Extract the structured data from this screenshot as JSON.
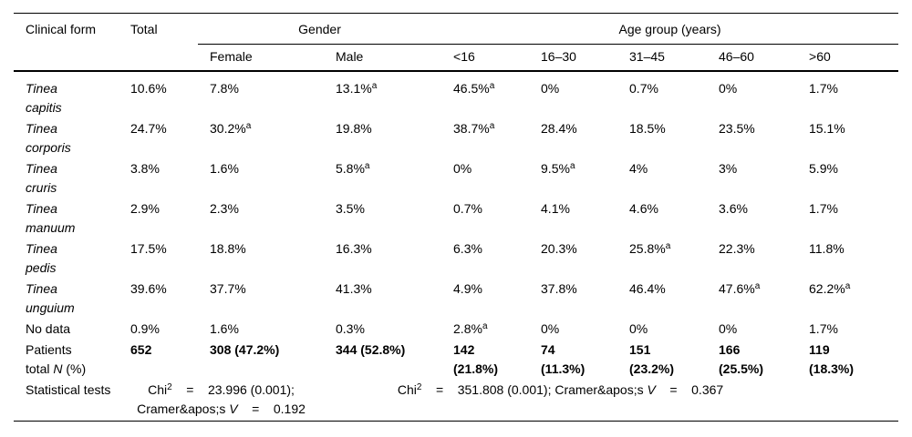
{
  "table": {
    "header": {
      "clinical_form": "Clinical form",
      "total": "Total",
      "gender": "Gender",
      "age_group": "Age group (years)",
      "sub": [
        "Female",
        "Male",
        "<16",
        "16–30",
        "31–45",
        "46–60",
        ">60"
      ]
    },
    "rows": [
      {
        "label": {
          "lines": [
            "Tinea",
            "capitis"
          ],
          "italic": true
        },
        "cells": [
          "10.6%",
          "7.8%",
          {
            "v": "13.1%",
            "sup": "a"
          },
          {
            "v": "46.5%",
            "sup": "a"
          },
          "0%",
          "0.7%",
          "0%",
          "1.7%"
        ]
      },
      {
        "label": {
          "lines": [
            "Tinea",
            "corporis"
          ],
          "italic": true
        },
        "cells": [
          "24.7%",
          {
            "v": "30.2%",
            "sup": "a"
          },
          "19.8%",
          {
            "v": "38.7%",
            "sup": "a"
          },
          "28.4%",
          "18.5%",
          "23.5%",
          "15.1%"
        ]
      },
      {
        "label": {
          "lines": [
            "Tinea",
            "cruris"
          ],
          "italic": true
        },
        "cells": [
          "3.8%",
          "1.6%",
          {
            "v": "5.8%",
            "sup": "a"
          },
          "0%",
          {
            "v": "9.5%",
            "sup": "a"
          },
          "4%",
          "3%",
          "5.9%"
        ]
      },
      {
        "label": {
          "lines": [
            "Tinea",
            "manuum"
          ],
          "italic": true
        },
        "cells": [
          "2.9%",
          "2.3%",
          "3.5%",
          "0.7%",
          "4.1%",
          "4.6%",
          "3.6%",
          "1.7%"
        ]
      },
      {
        "label": {
          "lines": [
            "Tinea",
            "pedis"
          ],
          "italic": true
        },
        "cells": [
          "17.5%",
          "18.8%",
          "16.3%",
          "6.3%",
          "20.3%",
          {
            "v": "25.8%",
            "sup": "a"
          },
          "22.3%",
          "11.8%"
        ]
      },
      {
        "label": {
          "lines": [
            "Tinea",
            "unguium"
          ],
          "italic": true
        },
        "cells": [
          "39.6%",
          "37.7%",
          "41.3%",
          "4.9%",
          "37.8%",
          "46.4%",
          {
            "v": "47.6%",
            "sup": "a"
          },
          {
            "v": "62.2%",
            "sup": "a"
          }
        ]
      },
      {
        "label": {
          "lines": [
            "No data"
          ]
        },
        "cells": [
          "0.9%",
          "1.6%",
          "0.3%",
          {
            "v": "2.8%",
            "sup": "a"
          },
          "0%",
          "0%",
          "0%",
          "1.7%"
        ]
      },
      {
        "label": {
          "lines": [
            "Patients",
            [
              {
                "t": "total "
              },
              {
                "t": "N",
                "i": true
              },
              {
                "t": " (%)"
              }
            ]
          ]
        },
        "bold_values": true,
        "cells": [
          "652",
          "308 (47.2%)",
          "344 (52.8%)",
          {
            "lines": [
              "142",
              "(21.8%)"
            ]
          },
          {
            "lines": [
              "74",
              "(11.3%)"
            ]
          },
          {
            "lines": [
              "151",
              "(23.2%)"
            ]
          },
          {
            "lines": [
              "166",
              "(25.5%)"
            ]
          },
          {
            "lines": [
              "119",
              "(18.3%)"
            ]
          }
        ]
      }
    ],
    "stats": {
      "label": "Statistical tests",
      "gender": {
        "lines": [
          [
            {
              "t": "Chi"
            },
            {
              "t": "2",
              "sup": true
            },
            {
              "t": "    =    23.996 (0.001);"
            }
          ],
          [
            {
              "t": "Cramer&apos;s "
            },
            {
              "t": "V",
              "i": true
            },
            {
              "t": "    =    0.192"
            }
          ]
        ]
      },
      "age": {
        "lines": [
          [
            {
              "t": "Chi"
            },
            {
              "t": "2",
              "sup": true
            },
            {
              "t": "    =    351.808 (0.001); Cramer&apos;s "
            },
            {
              "t": "V",
              "i": true
            },
            {
              "t": "    =    0.367"
            }
          ]
        ]
      }
    }
  }
}
